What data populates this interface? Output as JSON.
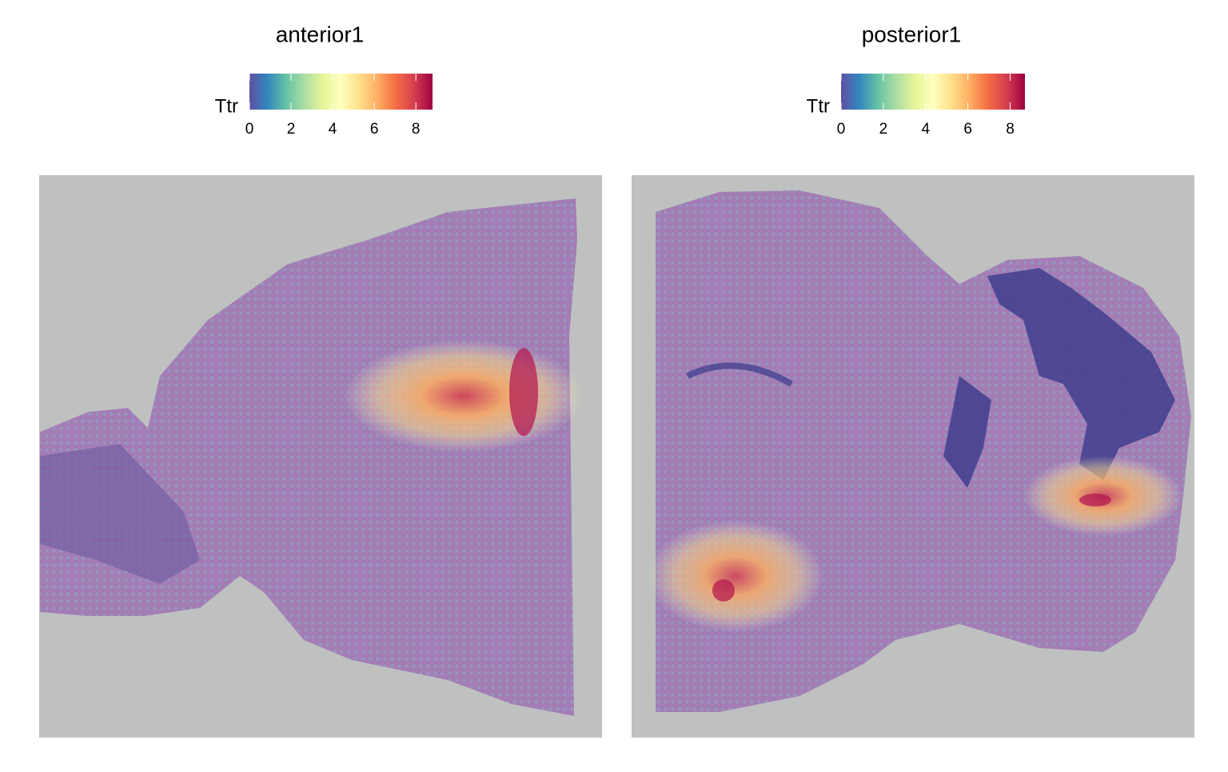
{
  "chart_data": [
    {
      "type": "spatial",
      "title": "anterior1",
      "legend_title": "Ttr",
      "clim": [
        0,
        8.8
      ],
      "cticks": [
        0,
        2,
        4,
        6,
        8
      ],
      "colors": [
        "#5e4fa2",
        "#3288bd",
        "#66c2a5",
        "#abdda4",
        "#e6f598",
        "#ffffbf",
        "#fee08b",
        "#fdae61",
        "#f46d43",
        "#d53e4f",
        "#9e0142"
      ]
    },
    {
      "type": "spatial",
      "title": "posterior1",
      "legend_title": "Ttr",
      "clim": [
        0,
        8.7
      ],
      "cticks": [
        0,
        2,
        4,
        6,
        8
      ],
      "colors": [
        "#5e4fa2",
        "#3288bd",
        "#66c2a5",
        "#abdda4",
        "#e6f598",
        "#ffffbf",
        "#fee08b",
        "#fdae61",
        "#f46d43",
        "#d53e4f",
        "#9e0142"
      ]
    }
  ]
}
